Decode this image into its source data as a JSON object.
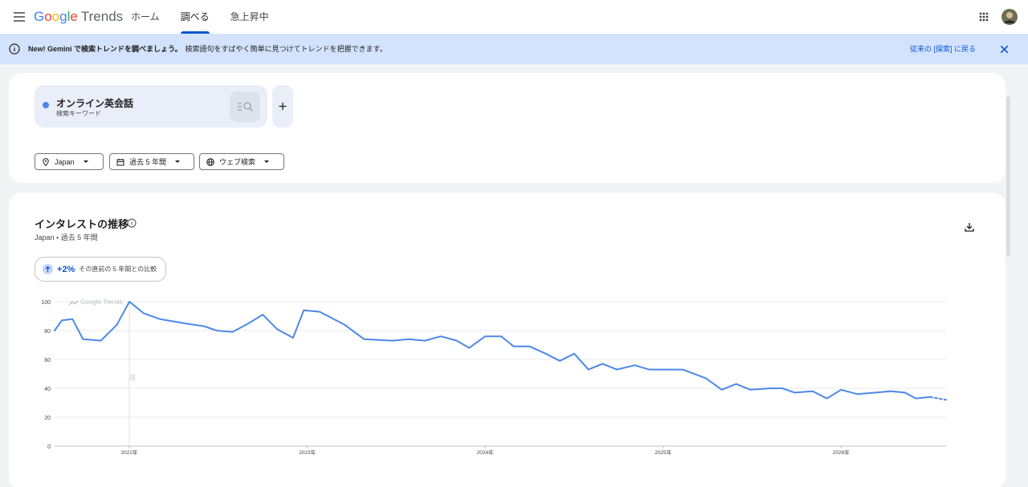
{
  "header": {
    "logo_brand": "Google",
    "logo_product": "Trends",
    "tabs": [
      "ホーム",
      "調べる",
      "急上昇中"
    ],
    "active_tab": 1
  },
  "banner": {
    "headline": "New! Gemini で検索トレンドを調べましょう。",
    "text": "検索語句をすばやく簡単に見つけてトレンドを把握できます。",
    "link": "従来の [探索] に戻る"
  },
  "search": {
    "term_type": "検索キーワード",
    "filters": [
      "Japan",
      "過去 5 年間",
      "ウェブ検索"
    ]
  },
  "comparison": {
    "change": "+2%",
    "text": "その直前の 5 年間との比較"
  },
  "chart_data": {
    "type": "line",
    "title": "インタレストの推移",
    "subtitle": "Japan ・ 過去 5 年間",
    "watermark": "Google Trends",
    "annotation": {
      "text": "注",
      "x": 2022
    },
    "x": [
      2021.58,
      2021.62,
      2021.68,
      2021.74,
      2021.84,
      2021.93,
      2022.0,
      2022.08,
      2022.17,
      2022.31,
      2022.42,
      2022.49,
      2022.58,
      2022.67,
      2022.75,
      2022.83,
      2022.92,
      2022.98,
      2023.07,
      2023.21,
      2023.32,
      2023.48,
      2023.57,
      2023.66,
      2023.75,
      2023.84,
      2023.91,
      2024.0,
      2024.09,
      2024.16,
      2024.25,
      2024.34,
      2024.42,
      2024.5,
      2024.58,
      2024.66,
      2024.74,
      2024.84,
      2024.92,
      2025.02,
      2025.11,
      2025.24,
      2025.33,
      2025.41,
      2025.49,
      2025.6,
      2025.67,
      2025.74,
      2025.84,
      2025.92,
      2026.0,
      2026.09,
      2026.19,
      2026.28,
      2026.36,
      2026.42,
      2026.5,
      2026.59
    ],
    "series": [
      {
        "name": "オンライン英会話",
        "color": "#4d88e8",
        "values": [
          80,
          87,
          88,
          74,
          73,
          84,
          100,
          92,
          88,
          85,
          83,
          80,
          79,
          85,
          91,
          81,
          75,
          94,
          93,
          84,
          74,
          73,
          74,
          73,
          76,
          73,
          68,
          76,
          76,
          69,
          69,
          64,
          59,
          64,
          53,
          57,
          53,
          56,
          53,
          53,
          53,
          47,
          39,
          43,
          39,
          40,
          40,
          37,
          38,
          33,
          39,
          36,
          37,
          38,
          37,
          33,
          34,
          32
        ]
      }
    ],
    "xlim": [
      2021.58,
      2026.59
    ],
    "xticks": [
      {
        "value": 2022,
        "label": "2022年"
      },
      {
        "value": 2023,
        "label": "2023年"
      },
      {
        "value": 2024,
        "label": "2024年"
      },
      {
        "value": 2025,
        "label": "2025年"
      },
      {
        "value": 2026,
        "label": "2026年"
      }
    ],
    "ylim": [
      0,
      100
    ],
    "yticks": [
      0,
      20,
      40,
      60,
      80,
      100
    ],
    "grid": true,
    "last_segment_dashed": true
  }
}
